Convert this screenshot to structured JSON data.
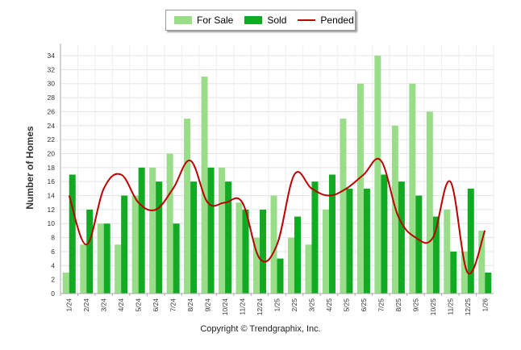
{
  "chart_data": {
    "type": "bar",
    "title": "",
    "xlabel": "",
    "ylabel": "Number of Homes",
    "ylim": [
      0,
      35
    ],
    "yticks": [
      0,
      2,
      4,
      6,
      8,
      10,
      12,
      14,
      16,
      18,
      20,
      22,
      24,
      26,
      28,
      30,
      32,
      34
    ],
    "grid": true,
    "categories": [
      "1/24",
      "2/24",
      "3/24",
      "4/24",
      "5/24",
      "6/24",
      "7/24",
      "8/24",
      "9/24",
      "10/24",
      "11/24",
      "12/24",
      "1/25",
      "2/25",
      "3/25",
      "4/25",
      "5/25",
      "6/25",
      "7/25",
      "8/25",
      "9/25",
      "10/25",
      "11/25",
      "12/25",
      "1/26"
    ],
    "series": [
      {
        "name": "For Sale",
        "type": "bar",
        "color": "#99dd88",
        "values": [
          3,
          7,
          10,
          7,
          14,
          18,
          20,
          25,
          31,
          18,
          13,
          8,
          14,
          8,
          7,
          12,
          25,
          30,
          34,
          24,
          30,
          26,
          12,
          6,
          9
        ]
      },
      {
        "name": "Sold",
        "type": "bar",
        "color": "#11aa22",
        "values": [
          17,
          12,
          10,
          14,
          18,
          16,
          10,
          16,
          18,
          16,
          12,
          12,
          5,
          11,
          16,
          17,
          15,
          15,
          17,
          16,
          14,
          11,
          6,
          15,
          3
        ]
      },
      {
        "name": "Pended",
        "type": "line",
        "color": "#bb0000",
        "values": [
          14,
          7,
          15,
          17,
          13,
          12,
          15,
          19,
          13,
          13,
          13,
          5,
          7,
          17,
          15,
          14,
          15,
          17,
          19,
          11,
          8,
          8,
          16,
          3,
          9
        ]
      }
    ],
    "legend_position": "top-center"
  },
  "legend": {
    "for_sale": "For Sale",
    "sold": "Sold",
    "pended": "Pended"
  },
  "footer": {
    "copyright": "Copyright © Trendgraphix, Inc."
  }
}
